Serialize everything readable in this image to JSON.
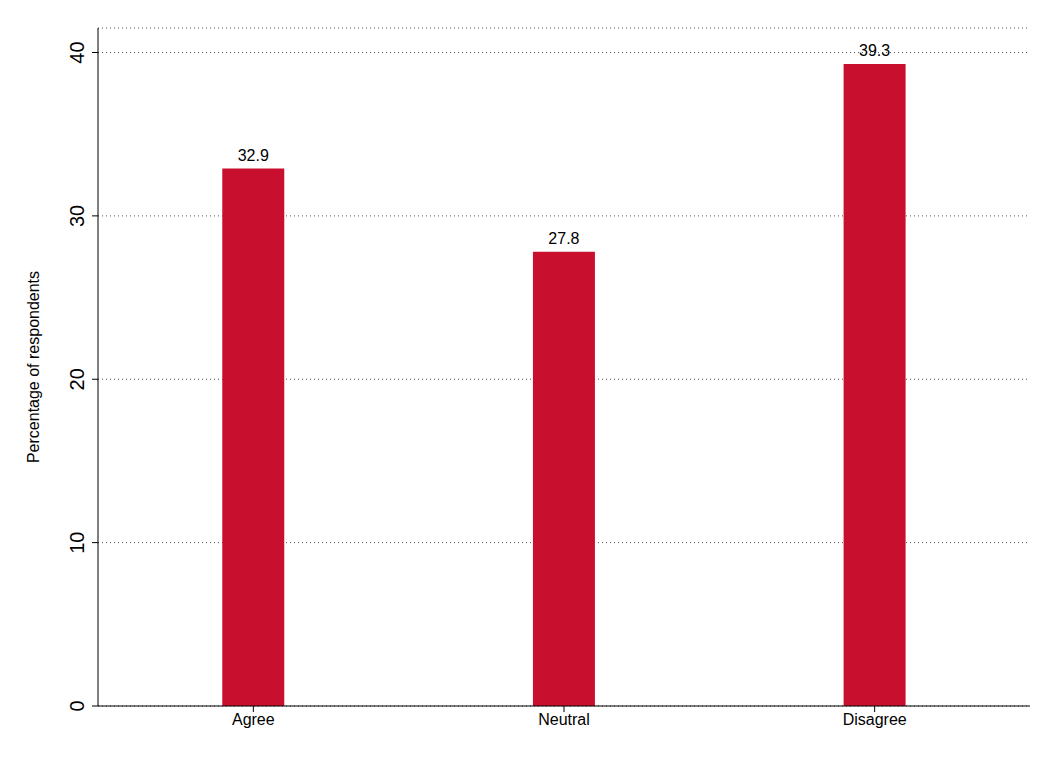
{
  "chart_data": {
    "type": "bar",
    "categories": [
      "Agree",
      "Neutral",
      "Disagree"
    ],
    "values": [
      32.9,
      27.8,
      39.3
    ],
    "color": "#c8102e",
    "y_label": "Percentage of respondents",
    "ylim": [
      0,
      41.5
    ],
    "yticks": [
      0,
      10,
      20,
      30,
      40
    ],
    "grid": true,
    "data_labels": true
  }
}
